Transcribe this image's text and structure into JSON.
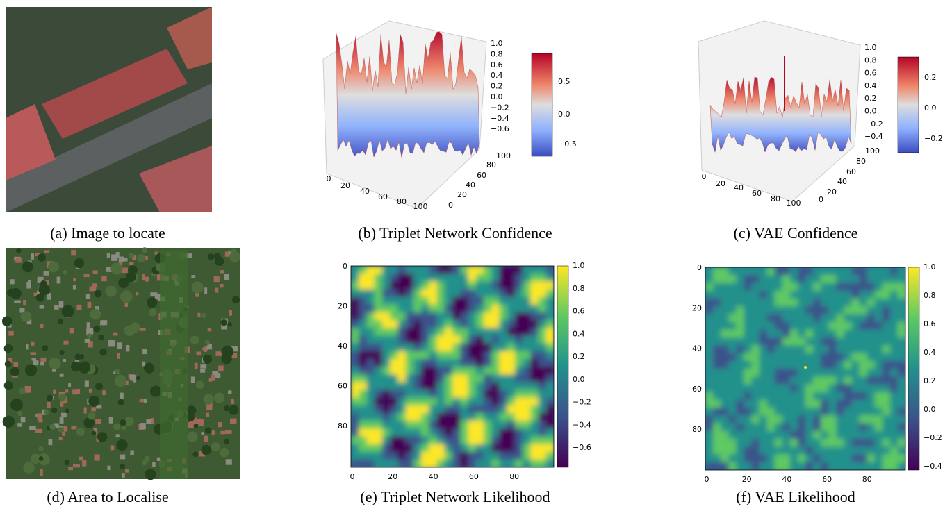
{
  "panels": [
    {
      "caption": "(a) Image to locate"
    },
    {
      "caption": "(b) Triplet Network Confidence",
      "x_ticks": [
        "0",
        "20",
        "40",
        "60",
        "80",
        "100"
      ],
      "y_ticks": [
        "0",
        "20",
        "40",
        "60",
        "80",
        "100"
      ],
      "z_ticks": [
        "1.0",
        "0.8",
        "0.6",
        "0.4",
        "0.2",
        "0.0",
        "−0.2",
        "−0.4",
        "−0.6"
      ],
      "colorbar_ticks": [
        "0.5",
        "0.0",
        "−0.5"
      ]
    },
    {
      "caption": "(c) VAE Confidence",
      "x_ticks": [
        "0",
        "20",
        "40",
        "60",
        "80",
        "100"
      ],
      "y_ticks": [
        "0",
        "20",
        "40",
        "60",
        "80",
        "100"
      ],
      "z_ticks": [
        "1.0",
        "0.8",
        "0.6",
        "0.4",
        "0.2",
        "0.0",
        "−0.2",
        "−0.4"
      ],
      "colorbar_ticks": [
        "0.2",
        "0.0",
        "−0.2"
      ]
    },
    {
      "caption": "(d) Area to Localise"
    },
    {
      "caption": "(e) Triplet Network Likelihood",
      "x_ticks": [
        "0",
        "20",
        "40",
        "60",
        "80"
      ],
      "y_ticks": [
        "0",
        "20",
        "40",
        "60",
        "80"
      ],
      "colorbar_ticks": [
        "1.0",
        "0.8",
        "0.6",
        "0.4",
        "0.2",
        "0.0",
        "−0.2",
        "−0.4",
        "−0.6"
      ]
    },
    {
      "caption": "(f) VAE Likelihood",
      "x_ticks": [
        "0",
        "20",
        "40",
        "60",
        "80"
      ],
      "y_ticks": [
        "0",
        "20",
        "40",
        "60",
        "80"
      ],
      "colorbar_ticks": [
        "1.0",
        "0.8",
        "0.6",
        "0.4",
        "0.2",
        "0.0",
        "−0.2",
        "−0.4"
      ]
    }
  ]
}
